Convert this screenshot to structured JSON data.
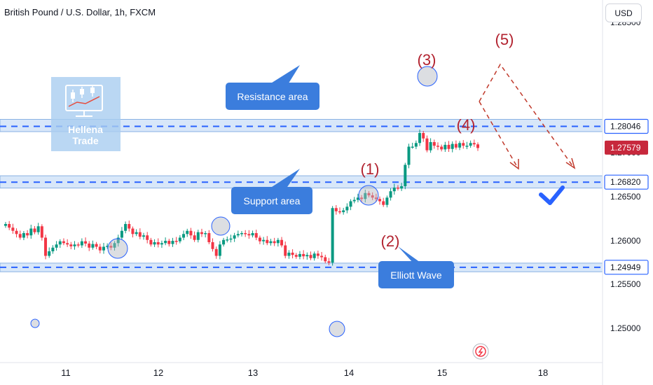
{
  "header": {
    "title": "British Pound / U.S. Dollar, 1h, FXCM",
    "currency": "USD"
  },
  "colors": {
    "bull": "#089981",
    "bear": "#f23645",
    "band": "#cfe2f8",
    "band_line": "#2962ff",
    "callout": "#3b7ddd",
    "wave_label": "#b2222f",
    "projection": "#c0392b",
    "price_tag_blue": "#2962ff",
    "price_tag_red": "#c7283c"
  },
  "logo": {
    "line1": "Hellena",
    "line2": "Trade"
  },
  "chart_data": {
    "type": "candlestick",
    "title": "British Pound / U.S. Dollar, 1h, FXCM",
    "y_axis_ticks": [
      "1.28500",
      "1.27000",
      "1.26500",
      "1.26000",
      "1.25500",
      "1.25000"
    ],
    "x_axis_ticks": [
      "11",
      "12",
      "13",
      "14",
      "15",
      "18"
    ],
    "price_tags": [
      {
        "label": "1.28046",
        "value": 1.28046,
        "style": "blue"
      },
      {
        "label": "1.27579",
        "value": 1.27579,
        "style": "red"
      },
      {
        "label": "1.26820",
        "value": 1.2682,
        "style": "blue"
      },
      {
        "label": "1.24949",
        "value": 1.24949,
        "style": "blue"
      }
    ],
    "zones": [
      {
        "name": "Resistance area",
        "low": 1.2793,
        "high": 1.282,
        "level": 1.28046
      },
      {
        "name": "Support area",
        "low": 1.2669,
        "high": 1.2696,
        "level": 1.2682
      },
      {
        "name": "",
        "low": 1.2485,
        "high": 1.2504,
        "level": 1.24949
      }
    ],
    "callouts": [
      "Resistance area",
      "Support area",
      "Elliott Wave"
    ],
    "wave_labels": [
      "(1)",
      "(2)",
      "(3)",
      "(4)",
      "(5)"
    ],
    "close_series": [
      1.259,
      1.2582,
      1.2575,
      1.2568,
      1.256,
      1.257,
      1.2565,
      1.258,
      1.2572,
      1.2585,
      1.256,
      1.252,
      1.253,
      1.2538,
      1.2545,
      1.2552,
      1.2548,
      1.2545,
      1.2541,
      1.2545,
      1.2543,
      1.2552,
      1.2547,
      1.2538,
      1.2546,
      1.254,
      1.2532,
      1.254,
      1.2542,
      1.2538,
      1.2548,
      1.256,
      1.2575,
      1.259,
      1.258,
      1.2568,
      1.2572,
      1.2562,
      1.2565,
      1.2555,
      1.2545,
      1.255,
      1.2545,
      1.2548,
      1.2553,
      1.2546,
      1.2553,
      1.2552,
      1.256,
      1.2568,
      1.2575,
      1.2565,
      1.2555,
      1.2572,
      1.2568,
      1.257,
      1.255,
      1.2535,
      1.252,
      1.2545,
      1.2555,
      1.2556,
      1.2558,
      1.2565,
      1.2568,
      1.257,
      1.2568,
      1.2565,
      1.257,
      1.256,
      1.2552,
      1.2555,
      1.2548,
      1.2552,
      1.2548,
      1.2555,
      1.2543,
      1.252,
      1.2527,
      1.2522,
      1.2518,
      1.2524,
      1.2519,
      1.2522,
      1.2515,
      1.2525,
      1.252,
      1.2517,
      1.2508,
      1.2505,
      1.2625,
      1.2618,
      1.2616,
      1.262,
      1.2628,
      1.264,
      1.2643,
      1.2648,
      1.2645,
      1.2658,
      1.2653,
      1.2648,
      1.2645,
      1.264,
      1.2632,
      1.2648,
      1.2662,
      1.267,
      1.2668,
      1.2673,
      1.272,
      1.276,
      1.276,
      1.2768,
      1.279,
      1.2778,
      1.2752,
      1.277,
      1.2762,
      1.276,
      1.2754,
      1.2764,
      1.2755,
      1.2766,
      1.2758,
      1.2768,
      1.2762,
      1.2762,
      1.2768,
      1.2765,
      1.2757
    ]
  }
}
